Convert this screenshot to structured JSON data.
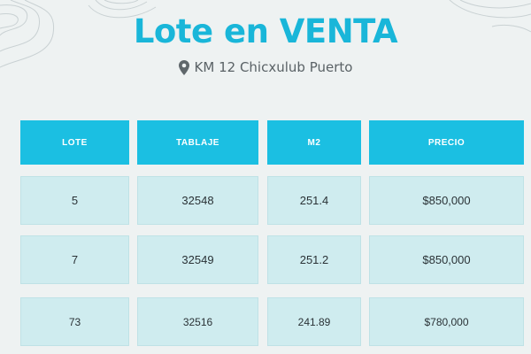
{
  "header": {
    "title": "Lote en VENTA",
    "location": "KM 12 Chicxulub Puerto",
    "location_icon": "map-pin-icon"
  },
  "colors": {
    "accent": "#1bbfe2",
    "cell_background": "#cfecef",
    "page_background": "#eef2f2"
  },
  "table": {
    "columns": [
      "LOTE",
      "TABLAJE",
      "M2",
      "PRECIO"
    ],
    "rows": [
      [
        "5",
        "32548",
        "251.4",
        "$850,000"
      ],
      [
        "7",
        "32549",
        "251.2",
        "$850,000"
      ],
      [
        "73",
        "32516",
        "241.89",
        "$780,000"
      ]
    ]
  }
}
